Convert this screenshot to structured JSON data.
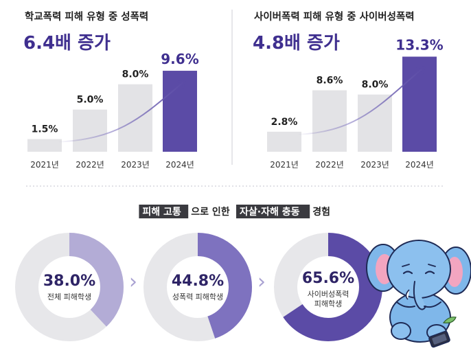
{
  "colors": {
    "accent": "#5b4ba6",
    "bar_gray": "#e3e3e6",
    "donut_track": "#e7e7ea",
    "text_dark": "#222222",
    "divider": "#d6d6dc"
  },
  "chart_data": [
    {
      "type": "bar",
      "subtitle": "학교폭력 피해 유형 중 성폭력",
      "title": "6.4배 증가",
      "categories": [
        "2021년",
        "2022년",
        "2023년",
        "2024년"
      ],
      "values": [
        1.5,
        5.0,
        8.0,
        9.6
      ],
      "labels": [
        "1.5%",
        "5.0%",
        "8.0%",
        "9.6%"
      ],
      "highlight_index": 3,
      "ylim": [
        0,
        10.5
      ]
    },
    {
      "type": "bar",
      "subtitle": "사이버폭력 피해 유형 중 사이버성폭력",
      "title": "4.8배 증가",
      "categories": [
        "2021년",
        "2022년",
        "2023년",
        "2024년"
      ],
      "values": [
        2.8,
        8.6,
        8.0,
        13.3
      ],
      "labels": [
        "2.8%",
        "8.6%",
        "8.0%",
        "13.3%"
      ],
      "highlight_index": 3,
      "ylim": [
        0,
        14.5
      ]
    }
  ],
  "section2": {
    "title_parts": [
      {
        "text": "피해 고통",
        "boxed": true
      },
      {
        "text": "으로 인한",
        "boxed": false
      },
      {
        "text": "자살·자해 충동",
        "boxed": true
      },
      {
        "text": "경험",
        "boxed": false
      }
    ],
    "donuts": [
      {
        "value": 38.0,
        "label": "38.0%",
        "caption": [
          "전체 피해학생"
        ],
        "color": "#b3acd6"
      },
      {
        "value": 44.8,
        "label": "44.8%",
        "caption": [
          "성폭력 피해학생"
        ],
        "color": "#7e72bf"
      },
      {
        "value": 65.6,
        "label": "65.6%",
        "caption": [
          "사이버성폭력",
          "피해학생"
        ],
        "color": "#5b4ba6"
      }
    ],
    "arrow_glyph": "›"
  }
}
